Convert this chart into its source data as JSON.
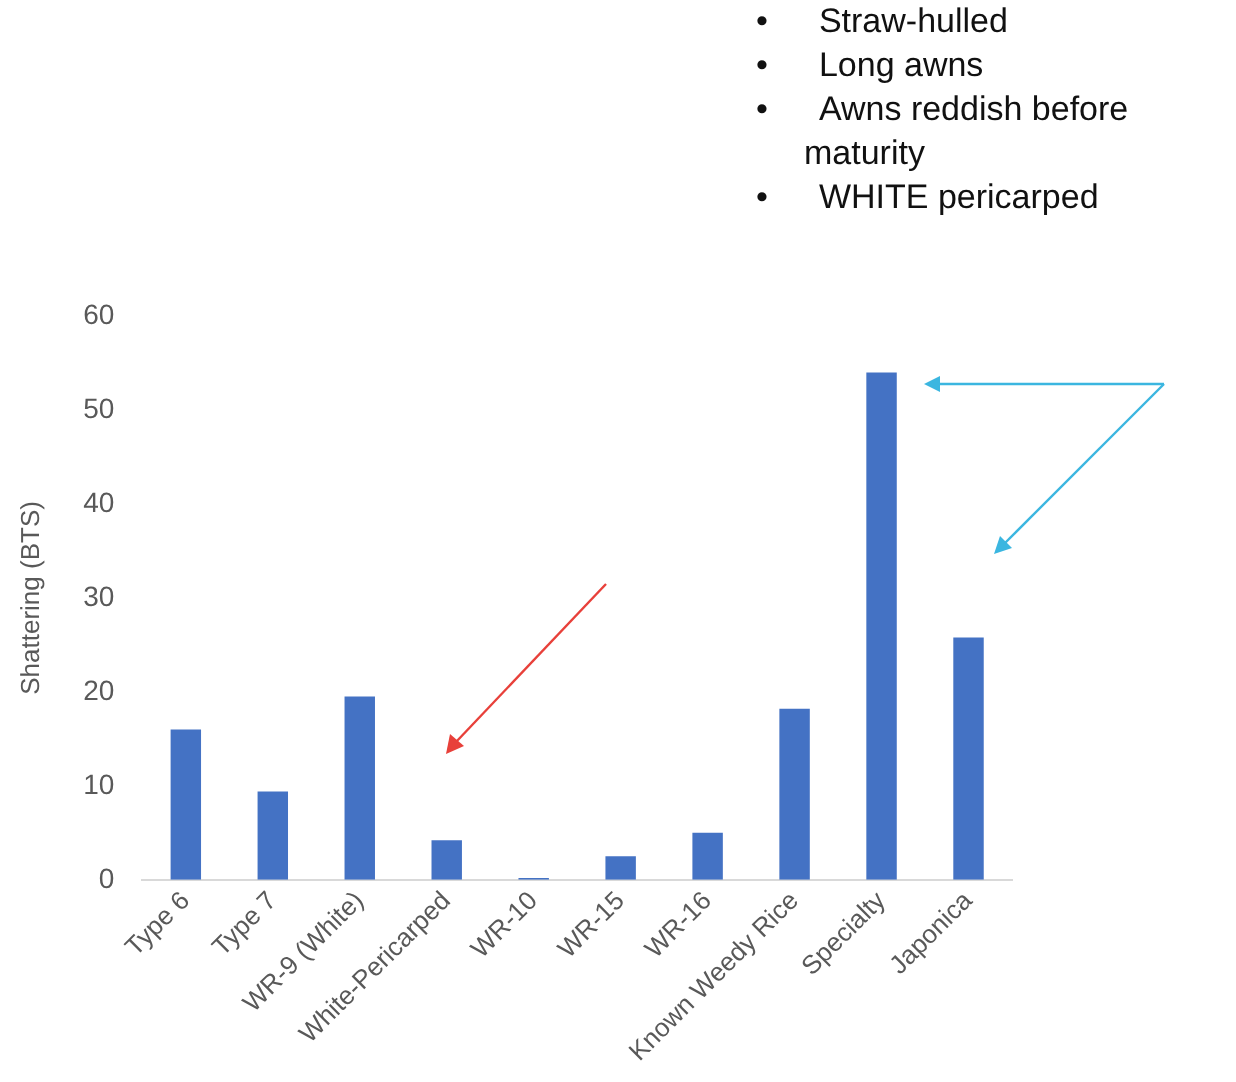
{
  "chart_data": {
    "type": "bar",
    "ylabel": "Shattering (BTS)",
    "categories": [
      "Type 6",
      "Type 7",
      "WR-9 (White)",
      "White-Pericarped",
      "WR-10",
      "WR-15",
      "WR-16",
      "Known Weedy Rice",
      "Specialty",
      "Japonica"
    ],
    "values": [
      16,
      9.4,
      19.5,
      4.2,
      0.2,
      2.5,
      5,
      18.2,
      54,
      25.8
    ],
    "color": "#4472c4",
    "ylim": [
      0,
      60
    ],
    "yticks": [
      0,
      10,
      20,
      30,
      40,
      50,
      60
    ],
    "grid": false,
    "legend": false,
    "annotations": [
      "• Straw-hulled",
      "• Long awns",
      "• Awns reddish before maturity",
      "• WHITE pericarped"
    ]
  }
}
